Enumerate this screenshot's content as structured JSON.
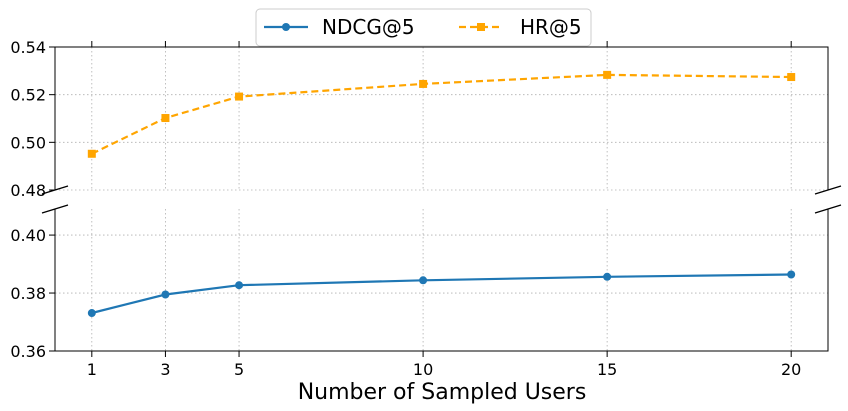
{
  "chart_data": {
    "type": "line",
    "xlabel": "Number of Sampled Users",
    "ylabel": "",
    "x": [
      1,
      3,
      5,
      10,
      15,
      20
    ],
    "x_ticks": [
      "1",
      "3",
      "5",
      "10",
      "15",
      "20"
    ],
    "broken_y_axis": true,
    "upper_ylim": [
      0.48,
      0.54
    ],
    "upper_y_ticks": [
      "0.48",
      "0.50",
      "0.52",
      "0.54"
    ],
    "lower_ylim": [
      0.36,
      0.409
    ],
    "lower_y_ticks": [
      "0.36",
      "0.38",
      "0.40"
    ],
    "grid": true,
    "legend_position": "top-center",
    "series": [
      {
        "name": "NDCG@5",
        "color": "#1f77b4",
        "marker": "circle",
        "linestyle": "solid",
        "panel": "lower",
        "values": [
          0.3731,
          0.3795,
          0.3827,
          0.3844,
          0.3856,
          0.3864
        ]
      },
      {
        "name": "HR@5",
        "color": "#ffa500",
        "marker": "square",
        "linestyle": "dashed",
        "panel": "upper",
        "values": [
          0.4952,
          0.5102,
          0.5192,
          0.5245,
          0.5283,
          0.5274
        ]
      }
    ]
  }
}
